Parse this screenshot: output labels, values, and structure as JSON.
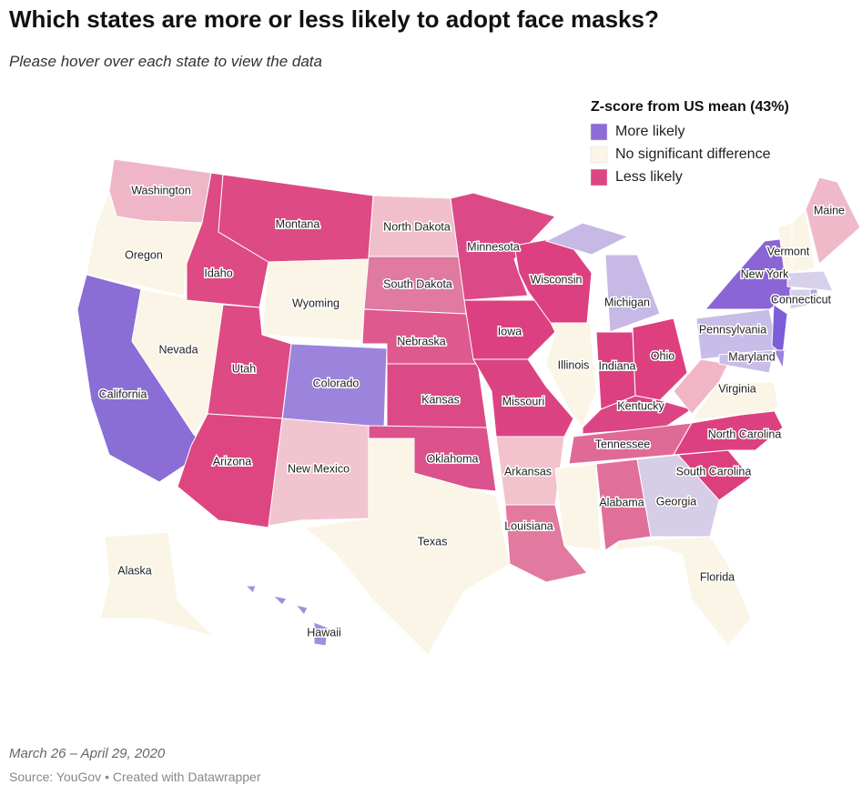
{
  "header": {
    "title": "Which states are more or less likely to adopt face masks?",
    "subtitle": "Please hover over each state to view the data"
  },
  "legend": {
    "title": "Z-score from US mean (43%)",
    "items": [
      {
        "label": "More likely",
        "color": "#8b6dd6"
      },
      {
        "label": "No significant difference",
        "color": "#faf5e6"
      },
      {
        "label": "Less likely",
        "color": "#dc4683"
      }
    ]
  },
  "states": [
    {
      "label": "Washington",
      "color": "#efb6c8"
    },
    {
      "label": "Oregon",
      "color": "#faf5e6"
    },
    {
      "label": "California",
      "color": "#8b6dd6"
    },
    {
      "label": "Nevada",
      "color": "#faf5e6"
    },
    {
      "label": "Idaho",
      "color": "#dd4a84"
    },
    {
      "label": "Montana",
      "color": "#dd4a84"
    },
    {
      "label": "Wyoming",
      "color": "#faf5e6"
    },
    {
      "label": "Utah",
      "color": "#dd4a84"
    },
    {
      "label": "Colorado",
      "color": "#9c84dd"
    },
    {
      "label": "Arizona",
      "color": "#de4681"
    },
    {
      "label": "New Mexico",
      "color": "#f1c5cf"
    },
    {
      "label": "North Dakota",
      "color": "#f0bfcb"
    },
    {
      "label": "South Dakota",
      "color": "#e07aa0"
    },
    {
      "label": "Nebraska",
      "color": "#de5a8e"
    },
    {
      "label": "Kansas",
      "color": "#db4a86"
    },
    {
      "label": "Oklahoma",
      "color": "#db528c"
    },
    {
      "label": "Texas",
      "color": "#faf5e6"
    },
    {
      "label": "Minnesota",
      "color": "#db4a86"
    },
    {
      "label": "Iowa",
      "color": "#dc4080"
    },
    {
      "label": "Missouri",
      "color": "#dc4383"
    },
    {
      "label": "Arkansas",
      "color": "#f2c2cd"
    },
    {
      "label": "Louisiana",
      "color": "#e27aa0"
    },
    {
      "label": "Wisconsin",
      "color": "#dc4080"
    },
    {
      "label": "Illinois",
      "color": "#faf5e6"
    },
    {
      "label": "Michigan",
      "color": "#c7b8e6"
    },
    {
      "label": "Indiana",
      "color": "#dd4080"
    },
    {
      "label": "Ohio",
      "color": "#dd3f7f"
    },
    {
      "label": "Kentucky",
      "color": "#dc4584"
    },
    {
      "label": "Tennessee",
      "color": "#e06a96"
    },
    {
      "label": null,
      "color": "#faf5e6"
    },
    {
      "label": "Alabama",
      "color": "#e0709a"
    },
    {
      "label": "Georgia",
      "color": "#d6cde8"
    },
    {
      "label": "Florida",
      "color": "#faf5e6"
    },
    {
      "label": "South Carolina",
      "color": "#dc3f7e"
    },
    {
      "label": "North Carolina",
      "color": "#dc4080"
    },
    {
      "label": "Virginia",
      "color": "#faf5e6"
    },
    {
      "label": null,
      "color": "#f1b5c5"
    },
    {
      "label": "Pennsylvania",
      "color": "#c8bce8"
    },
    {
      "label": "New York",
      "color": "#8b64d6"
    },
    {
      "label": null,
      "color": "#7c5fd6"
    },
    {
      "label": "Maryland",
      "color": "#c9bde8"
    },
    {
      "label": null,
      "color": "#9c84dd"
    },
    {
      "label": "Vermont",
      "color": "#faf5e6"
    },
    {
      "label": null,
      "color": "#faf5e6"
    },
    {
      "label": "Maine",
      "color": "#f0b9c9"
    },
    {
      "label": null,
      "color": "#d6d0ea"
    },
    {
      "label": "Connecticut",
      "color": "#d6d0ea"
    },
    {
      "label": null,
      "color": "#b8a8e2"
    },
    {
      "label": "Alaska",
      "color": "#faf5e6"
    },
    {
      "label": "Hawaii",
      "color": "#a58fdc"
    }
  ],
  "footer": {
    "date": "March 26 – April 29, 2020",
    "source": "Source: YouGov • Created with Datawrapper"
  }
}
